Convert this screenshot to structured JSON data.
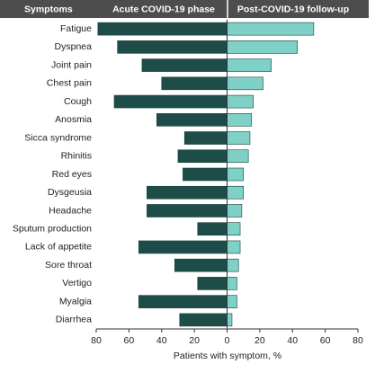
{
  "chart_data": {
    "type": "butterfly",
    "header": "Symptoms",
    "categories": [
      "Fatigue",
      "Dyspnea",
      "Joint pain",
      "Chest pain",
      "Cough",
      "Anosmia",
      "Sicca syndrome",
      "Rhinitis",
      "Red eyes",
      "Dysgeusia",
      "Headache",
      "Sputum production",
      "Lack of appetite",
      "Sore throat",
      "Vertigo",
      "Myalgia",
      "Diarrhea"
    ],
    "series": [
      {
        "name": "Acute COVID-19 phase",
        "color": "#1e4d49",
        "values": [
          79,
          67,
          52,
          40,
          69,
          43,
          26,
          30,
          27,
          49,
          49,
          18,
          54,
          32,
          18,
          54,
          29
        ]
      },
      {
        "name": "Post-COVID-19 follow-up",
        "color": "#7fd1c7",
        "values": [
          53,
          43,
          27,
          22,
          16,
          15,
          14,
          13,
          10,
          10,
          9,
          8,
          8,
          7,
          6,
          6,
          3
        ]
      }
    ],
    "xlabel": "Patients with symptom, %",
    "xlim": [
      -80,
      80
    ],
    "xticks": [
      {
        "value": -80,
        "label": "80"
      },
      {
        "value": -60,
        "label": "60"
      },
      {
        "value": -40,
        "label": "40"
      },
      {
        "value": -20,
        "label": "20"
      },
      0,
      20,
      40,
      60,
      80
    ]
  }
}
